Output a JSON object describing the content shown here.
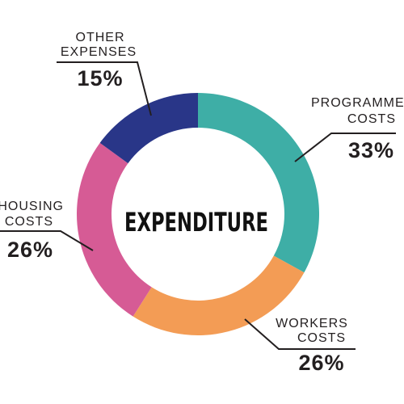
{
  "chart_data": {
    "type": "pie",
    "title": "EXPENDITURE",
    "slices": [
      {
        "label_lines": [
          "PROGRAMME",
          "COSTS"
        ],
        "value": 33,
        "value_label": "33%",
        "color": "#3eaea6"
      },
      {
        "label_lines": [
          "WORKERS",
          "COSTS"
        ],
        "value": 26,
        "value_label": "26%",
        "color": "#f39c55"
      },
      {
        "label_lines": [
          "HOUSING",
          "COSTS"
        ],
        "value": 26,
        "value_label": "26%",
        "color": "#d65b95"
      },
      {
        "label_lines": [
          "OTHER",
          "EXPENSES"
        ],
        "value": 15,
        "value_label": "15%",
        "color": "#293688"
      }
    ]
  }
}
